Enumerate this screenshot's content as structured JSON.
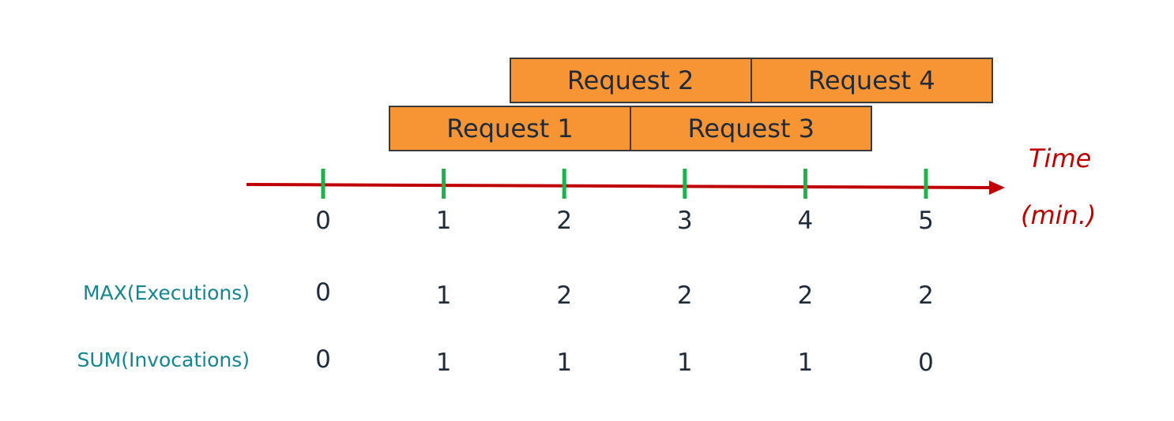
{
  "requests": [
    {
      "label": "Request 1",
      "start": 0.55,
      "end": 2.55,
      "row": 2
    },
    {
      "label": "Request 2",
      "start": 1.55,
      "end": 3.55,
      "row": 1
    },
    {
      "label": "Request 3",
      "start": 2.55,
      "end": 4.55,
      "row": 2
    },
    {
      "label": "Request 4",
      "start": 3.55,
      "end": 5.55,
      "row": 1
    }
  ],
  "axis": {
    "title_line1": "Time",
    "title_line2": "(min.)",
    "ticks": [
      "0",
      "1",
      "2",
      "3",
      "4",
      "5"
    ],
    "axis_color": "#c00000",
    "tick_color": "#1db34a"
  },
  "metrics": [
    {
      "name": "MAX(Executions)",
      "values": [
        "0",
        "1",
        "2",
        "2",
        "2",
        "2"
      ]
    },
    {
      "name": "SUM(Invocations)",
      "values": [
        "0",
        "1",
        "1",
        "1",
        "1",
        "0"
      ]
    }
  ],
  "colors": {
    "request_fill": "#f79433",
    "metric_label": "#138691"
  }
}
